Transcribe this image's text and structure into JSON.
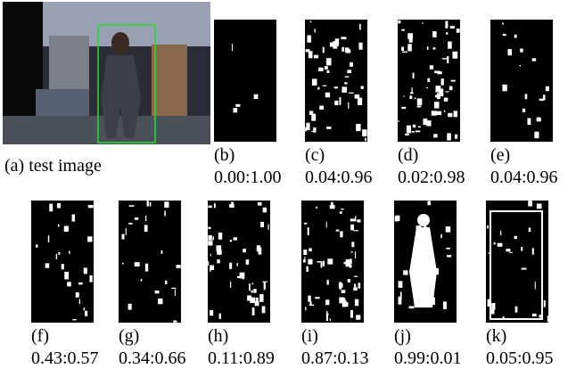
{
  "test_image": {
    "caption": "(a) test image"
  },
  "masks": [
    {
      "label": "(b)",
      "ratio": "0.00:1.00"
    },
    {
      "label": "(c)",
      "ratio": "0.04:0.96"
    },
    {
      "label": "(d)",
      "ratio": "0.02:0.98"
    },
    {
      "label": "(e)",
      "ratio": "0.04:0.96"
    },
    {
      "label": "(f)",
      "ratio": "0.43:0.57"
    },
    {
      "label": "(g)",
      "ratio": "0.34:0.66"
    },
    {
      "label": "(h)",
      "ratio": "0.11:0.89"
    },
    {
      "label": "(i)",
      "ratio": "0.87:0.13"
    },
    {
      "label": "(j)",
      "ratio": "0.99:0.01"
    },
    {
      "label": "(k)",
      "ratio": "0.05:0.95"
    }
  ]
}
